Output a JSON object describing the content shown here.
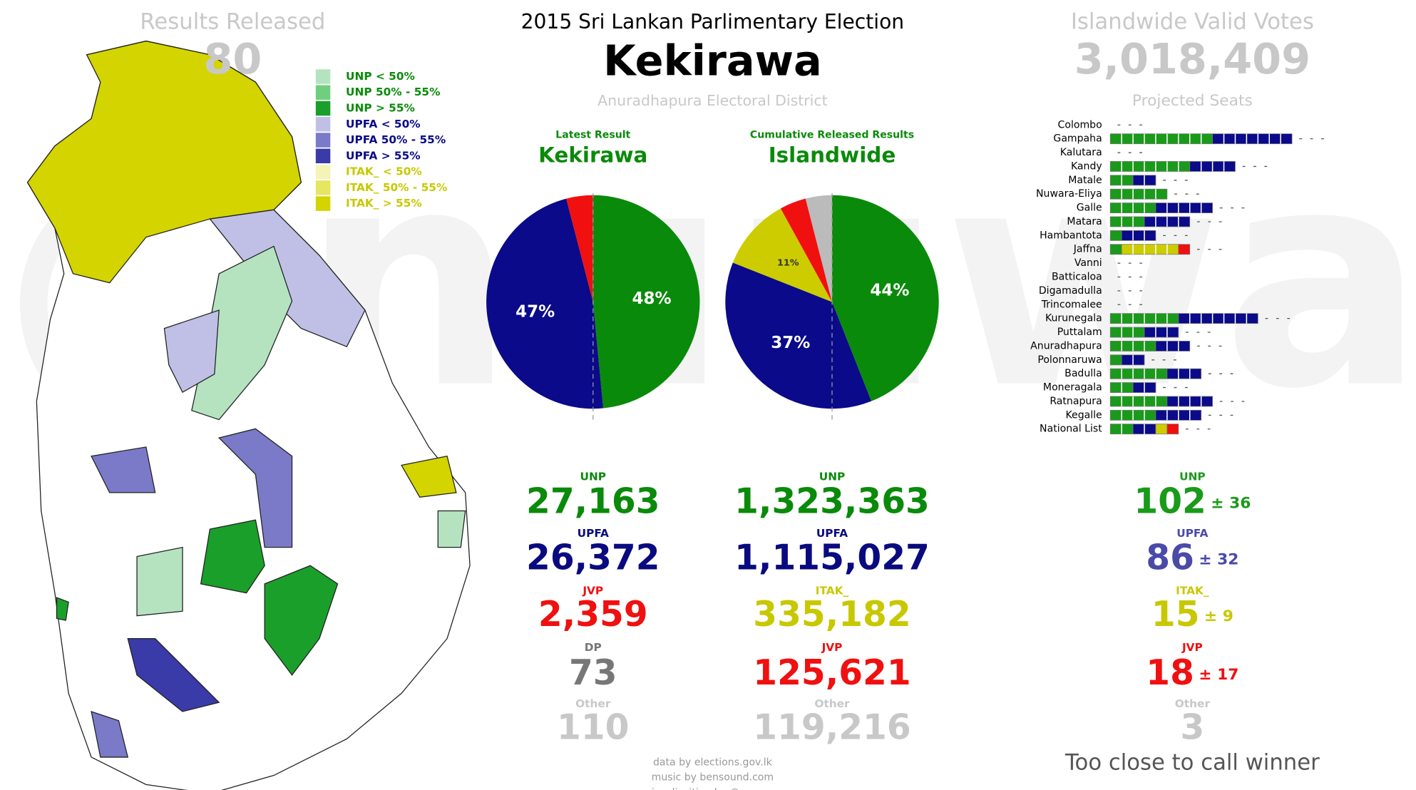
{
  "header": {
    "title": "2015 Sri Lankan Parlimentary Election",
    "division": "Kekirawa",
    "district": "Anuradhapura Electoral District"
  },
  "watermark": "@nuuwan",
  "released": {
    "label": "Results Released",
    "value": "80"
  },
  "valid_votes": {
    "label": "Islandwide Valid Votes",
    "value": "3,018,409"
  },
  "map_legend": [
    {
      "label": "UNP < 50%",
      "color": "#b5e3c0",
      "text_color": "#0a8a0a"
    },
    {
      "label": "UNP 50% - 55%",
      "color": "#6fcf7f",
      "text_color": "#0a8a0a"
    },
    {
      "label": "UNP > 55%",
      "color": "#1a9f2a",
      "text_color": "#0a8a0a"
    },
    {
      "label": "UPFA < 50%",
      "color": "#c0c0e6",
      "text_color": "#0a0a8a"
    },
    {
      "label": "UPFA 50% - 55%",
      "color": "#7a7ac8",
      "text_color": "#0a0a8a"
    },
    {
      "label": "UPFA > 55%",
      "color": "#3a3aa8",
      "text_color": "#0a0a8a"
    },
    {
      "label": "ITAK_ < 50%",
      "color": "#f4f4b8",
      "text_color": "#c8c800"
    },
    {
      "label": "ITAK_ 50% - 55%",
      "color": "#e6e660",
      "text_color": "#c8c800"
    },
    {
      "label": "ITAK_ > 55%",
      "color": "#d4d400",
      "text_color": "#c8c800"
    }
  ],
  "chart_data": [
    {
      "type": "pie",
      "subtitle": "Latest Result",
      "title": "Kekirawa",
      "values": [
        48,
        47,
        4
      ],
      "value_labels": [
        "48%",
        "47%",
        null
      ],
      "colors": [
        "#0a8a0a",
        "#0a0a8a",
        "#f01010"
      ]
    },
    {
      "type": "pie",
      "subtitle": "Cumulative Released Results",
      "title": "Islandwide",
      "values": [
        44,
        37,
        11,
        4,
        4
      ],
      "value_labels": [
        "44%",
        "37%",
        "11%",
        null,
        null
      ],
      "colors": [
        "#0a8a0a",
        "#0a0a8a",
        "#cccc00",
        "#f01010",
        "#bbbbbb"
      ]
    },
    {
      "type": "seat-blocks",
      "title": "Projected Seats",
      "categories": [
        "Colombo",
        "Gampaha",
        "Kalutara",
        "Kandy",
        "Matale",
        "Nuwara-Eliya",
        "Galle",
        "Matara",
        "Hambantota",
        "Jaffna",
        "Vanni",
        "Batticaloa",
        "Digamadulla",
        "Trincomalee",
        "Kurunegala",
        "Puttalam",
        "Anuradhapura",
        "Polonnaruwa",
        "Badulla",
        "Moneragala",
        "Ratnapura",
        "Kegalle",
        "National List"
      ],
      "series": [
        {
          "color": "#1a9a1a",
          "values": [
            0,
            9,
            0,
            7,
            2,
            5,
            4,
            3,
            1,
            1,
            0,
            0,
            0,
            0,
            6,
            3,
            4,
            1,
            5,
            2,
            5,
            4,
            2
          ]
        },
        {
          "color": "#0a0a8a",
          "values": [
            0,
            7,
            0,
            4,
            2,
            0,
            5,
            4,
            3,
            0,
            0,
            0,
            0,
            0,
            7,
            3,
            3,
            2,
            3,
            2,
            4,
            4,
            2
          ]
        },
        {
          "color": "#cccc00",
          "values": [
            0,
            0,
            0,
            0,
            0,
            0,
            0,
            0,
            0,
            5,
            0,
            0,
            0,
            0,
            0,
            0,
            0,
            0,
            0,
            0,
            0,
            0,
            1
          ]
        },
        {
          "color": "#f01010",
          "values": [
            0,
            0,
            0,
            0,
            0,
            0,
            0,
            0,
            0,
            1,
            0,
            0,
            0,
            0,
            0,
            0,
            0,
            0,
            0,
            0,
            0,
            0,
            1
          ]
        }
      ]
    }
  ],
  "latest_results": [
    {
      "party": "UNP",
      "votes": "27,163",
      "color": "#0a8a0a"
    },
    {
      "party": "UPFA",
      "votes": "26,372",
      "color": "#0a0a80"
    },
    {
      "party": "JVP",
      "votes": "2,359",
      "color": "#f01010"
    },
    {
      "party": "DP",
      "votes": "73",
      "color": "#777777"
    },
    {
      "party": "Other",
      "votes": "110",
      "color": "#c8c8c8"
    }
  ],
  "islandwide_results": [
    {
      "party": "UNP",
      "votes": "1,323,363",
      "color": "#0a8a0a"
    },
    {
      "party": "UPFA",
      "votes": "1,115,027",
      "color": "#0a0a80"
    },
    {
      "party": "ITAK_",
      "votes": "335,182",
      "color": "#c8c800"
    },
    {
      "party": "JVP",
      "votes": "125,621",
      "color": "#f01010"
    },
    {
      "party": "Other",
      "votes": "119,216",
      "color": "#c8c8c8"
    }
  ],
  "seat_projection": [
    {
      "party": "UNP",
      "seats": "102",
      "margin": "± 36",
      "color": "#1a9a1a"
    },
    {
      "party": "UPFA",
      "seats": "86",
      "margin": "± 32",
      "color": "#4a4aa8"
    },
    {
      "party": "ITAK_",
      "seats": "15",
      "margin": "± 9",
      "color": "#c8c800"
    },
    {
      "party": "JVP",
      "seats": "18",
      "margin": "± 17",
      "color": "#f01010"
    },
    {
      "party": "Other",
      "seats": "3",
      "color": "#c8c8c8"
    }
  ],
  "status": "Too close to call winner",
  "credits": [
    "data by elections.gov.lk",
    "music by bensound.com",
    "visualizaition by @nuuwan"
  ]
}
